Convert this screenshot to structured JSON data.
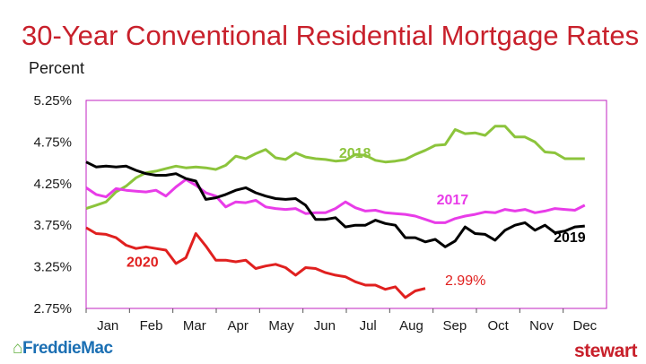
{
  "header": {
    "title": "30-Year Conventional Residential Mortgage Rates",
    "unit_label": "Percent"
  },
  "footer": {
    "left_logo": "FreddieMac",
    "right_logo": "stewart"
  },
  "colors": {
    "title": "#c8202b",
    "2018": "#8cc43c",
    "2017": "#e83ce8",
    "2019": "#000000",
    "2020": "#e0201f",
    "axis_box": "#c020c0"
  },
  "chart_data": {
    "type": "line",
    "title": "30-Year Conventional Residential Mortgage Rates",
    "ylabel": "Percent",
    "xlabel": "",
    "ylim": [
      2.75,
      5.25
    ],
    "xlim": [
      0,
      12
    ],
    "categories": [
      "Jan",
      "Feb",
      "Mar",
      "Apr",
      "May",
      "Jun",
      "Jul",
      "Aug",
      "Sep",
      "Oct",
      "Nov",
      "Dec"
    ],
    "yticks": [
      "5.25%",
      "4.75%",
      "4.25%",
      "3.75%",
      "3.25%",
      "2.75%"
    ],
    "grid": false,
    "annotation": "2.99%",
    "series": [
      {
        "name": "2018",
        "color": "#8cc43c",
        "label_at": [
          6.2,
          4.56
        ],
        "x": [
          0.0,
          0.23,
          0.46,
          0.69,
          0.92,
          1.15,
          1.38,
          1.61,
          1.84,
          2.07,
          2.3,
          2.53,
          2.76,
          2.99,
          3.22,
          3.45,
          3.68,
          3.91,
          4.14,
          4.37,
          4.6,
          4.83,
          5.06,
          5.29,
          5.52,
          5.75,
          5.98,
          6.21,
          6.44,
          6.67,
          6.9,
          7.13,
          7.36,
          7.59,
          7.82,
          8.05,
          8.28,
          8.51,
          8.74,
          8.97,
          9.2,
          9.43,
          9.66,
          9.89,
          10.12,
          10.35,
          10.58,
          10.81,
          11.04,
          11.27,
          11.5
        ],
        "values": [
          3.95,
          3.99,
          4.03,
          4.15,
          4.22,
          4.32,
          4.38,
          4.4,
          4.43,
          4.46,
          4.44,
          4.45,
          4.44,
          4.42,
          4.47,
          4.58,
          4.55,
          4.61,
          4.66,
          4.56,
          4.54,
          4.62,
          4.57,
          4.55,
          4.54,
          4.52,
          4.53,
          4.6,
          4.59,
          4.53,
          4.51,
          4.52,
          4.54,
          4.6,
          4.65,
          4.71,
          4.72,
          4.9,
          4.85,
          4.86,
          4.83,
          4.94,
          4.94,
          4.81,
          4.81,
          4.75,
          4.63,
          4.62,
          4.55,
          4.55,
          4.55
        ]
      },
      {
        "name": "2017",
        "color": "#e83ce8",
        "label_at": [
          8.45,
          4.0
        ],
        "x": [
          0.0,
          0.23,
          0.46,
          0.69,
          0.92,
          1.15,
          1.38,
          1.61,
          1.84,
          2.07,
          2.3,
          2.53,
          2.76,
          2.99,
          3.22,
          3.45,
          3.68,
          3.91,
          4.14,
          4.37,
          4.6,
          4.83,
          5.06,
          5.29,
          5.52,
          5.75,
          5.98,
          6.21,
          6.44,
          6.67,
          6.9,
          7.13,
          7.36,
          7.59,
          7.82,
          8.05,
          8.28,
          8.51,
          8.74,
          8.97,
          9.2,
          9.43,
          9.66,
          9.89,
          10.12,
          10.35,
          10.58,
          10.81,
          11.04,
          11.27,
          11.5
        ],
        "values": [
          4.2,
          4.12,
          4.09,
          4.19,
          4.17,
          4.16,
          4.15,
          4.17,
          4.1,
          4.21,
          4.3,
          4.23,
          4.14,
          4.1,
          3.97,
          4.03,
          4.02,
          4.05,
          3.97,
          3.95,
          3.94,
          3.95,
          3.89,
          3.9,
          3.9,
          3.95,
          4.03,
          3.96,
          3.92,
          3.93,
          3.9,
          3.89,
          3.88,
          3.86,
          3.82,
          3.78,
          3.78,
          3.83,
          3.86,
          3.88,
          3.91,
          3.9,
          3.94,
          3.92,
          3.94,
          3.9,
          3.92,
          3.95,
          3.94,
          3.93,
          3.99
        ]
      },
      {
        "name": "2019",
        "color": "#000000",
        "label_at": [
          11.15,
          3.55
        ],
        "x": [
          0.0,
          0.23,
          0.46,
          0.69,
          0.92,
          1.15,
          1.38,
          1.61,
          1.84,
          2.07,
          2.3,
          2.53,
          2.76,
          2.99,
          3.22,
          3.45,
          3.68,
          3.91,
          4.14,
          4.37,
          4.6,
          4.83,
          5.06,
          5.29,
          5.52,
          5.75,
          5.98,
          6.21,
          6.44,
          6.67,
          6.9,
          7.13,
          7.36,
          7.59,
          7.82,
          8.05,
          8.28,
          8.51,
          8.74,
          8.97,
          9.2,
          9.43,
          9.66,
          9.89,
          10.12,
          10.35,
          10.58,
          10.81,
          11.04,
          11.27,
          11.5
        ],
        "values": [
          4.51,
          4.45,
          4.46,
          4.45,
          4.46,
          4.41,
          4.37,
          4.35,
          4.35,
          4.37,
          4.31,
          4.28,
          4.06,
          4.08,
          4.12,
          4.17,
          4.2,
          4.14,
          4.1,
          4.07,
          4.06,
          4.07,
          3.99,
          3.82,
          3.82,
          3.84,
          3.73,
          3.75,
          3.75,
          3.81,
          3.77,
          3.75,
          3.6,
          3.6,
          3.55,
          3.58,
          3.49,
          3.56,
          3.73,
          3.65,
          3.64,
          3.57,
          3.69,
          3.75,
          3.78,
          3.69,
          3.75,
          3.66,
          3.68,
          3.73,
          3.74
        ]
      },
      {
        "name": "2020",
        "color": "#e0201f",
        "label_at": [
          1.3,
          3.25
        ],
        "x": [
          0.0,
          0.23,
          0.46,
          0.69,
          0.92,
          1.15,
          1.38,
          1.61,
          1.84,
          2.07,
          2.3,
          2.53,
          2.76,
          2.99,
          3.22,
          3.45,
          3.68,
          3.91,
          4.14,
          4.37,
          4.6,
          4.83,
          5.06,
          5.29,
          5.52,
          5.75,
          5.98,
          6.21,
          6.44,
          6.67,
          6.9,
          7.13,
          7.36,
          7.59,
          7.82
        ],
        "values": [
          3.72,
          3.65,
          3.64,
          3.6,
          3.51,
          3.47,
          3.49,
          3.47,
          3.45,
          3.29,
          3.36,
          3.65,
          3.5,
          3.33,
          3.33,
          3.31,
          3.33,
          3.23,
          3.26,
          3.28,
          3.24,
          3.15,
          3.24,
          3.23,
          3.18,
          3.15,
          3.13,
          3.07,
          3.03,
          3.03,
          2.98,
          3.01,
          2.88,
          2.96,
          2.99
        ]
      }
    ]
  }
}
